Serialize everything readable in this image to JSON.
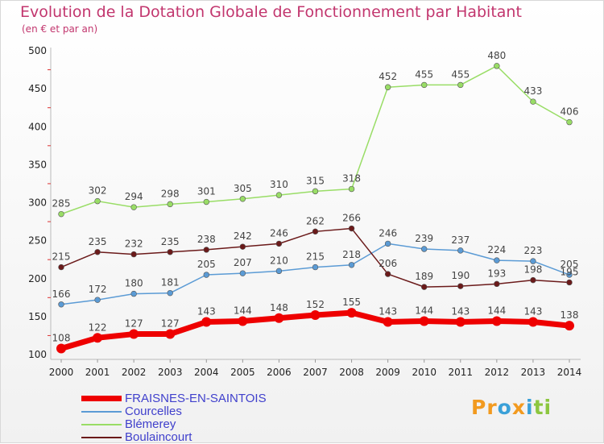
{
  "header": {
    "title": "Evolution de la Dotation Globale de Fonctionnement par Habitant",
    "subtitle": "(en € et par an)"
  },
  "brand": {
    "parts": [
      "Pr",
      "o",
      "x",
      "i",
      "ti"
    ],
    "colors": [
      "#f29a1f",
      "#3aa0d8",
      "#f29a1f",
      "#3aa0d8",
      "#8cc63f"
    ]
  },
  "chart_data": {
    "type": "line",
    "title": "Evolution de la Dotation Globale de Fonctionnement par Habitant",
    "subtitle": "(en € et par an)",
    "xlabel": "",
    "ylabel": "",
    "x": [
      "2000",
      "2001",
      "2002",
      "2003",
      "2004",
      "2005",
      "2006",
      "2007",
      "2008",
      "2009",
      "2010",
      "2011",
      "2012",
      "2013",
      "2014"
    ],
    "ylim": [
      100,
      500
    ],
    "yticks": [
      100,
      150,
      200,
      250,
      300,
      350,
      400,
      450,
      500
    ],
    "grid": false,
    "legend_position": "bottom-left",
    "series": [
      {
        "name": "FRAISNES-EN-SAINTOIS",
        "color": "#ee0000",
        "emphasis": true,
        "values": [
          108,
          122,
          127,
          127,
          143,
          144,
          148,
          152,
          155,
          143,
          144,
          143,
          144,
          143,
          138
        ]
      },
      {
        "name": "Courcelles",
        "color": "#5b9bd5",
        "emphasis": false,
        "values": [
          166,
          172,
          180,
          181,
          205,
          207,
          210,
          215,
          218,
          246,
          239,
          237,
          224,
          223,
          205
        ]
      },
      {
        "name": "Blémerey",
        "color": "#99dd66",
        "emphasis": false,
        "values": [
          285,
          302,
          294,
          298,
          301,
          305,
          310,
          315,
          318,
          452,
          455,
          455,
          480,
          433,
          406
        ]
      },
      {
        "name": "Boulaincourt",
        "color": "#6b1a1a",
        "emphasis": false,
        "values": [
          215,
          235,
          232,
          235,
          238,
          242,
          246,
          262,
          266,
          206,
          189,
          190,
          193,
          198,
          195
        ]
      }
    ]
  }
}
